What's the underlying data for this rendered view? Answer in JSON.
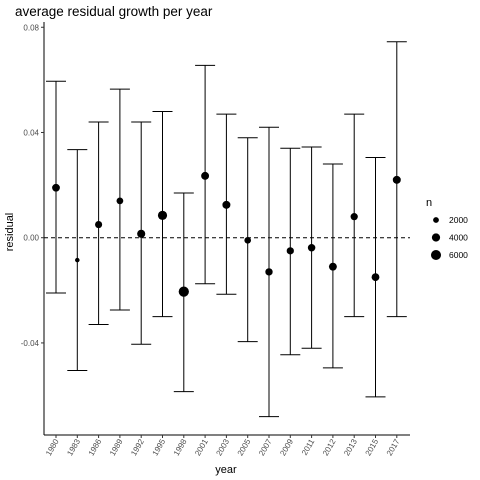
{
  "chart_data": {
    "type": "scatter",
    "title": "average residual growth per year",
    "xlabel": "year",
    "ylabel": "residual",
    "ylim": [
      -0.075,
      0.082
    ],
    "yticks": [
      -0.04,
      0.0,
      0.04,
      0.08
    ],
    "ytick_labels": [
      "-0.04",
      "0.00",
      "0.04",
      "0.08"
    ],
    "reference_line": {
      "y": 0.0,
      "style": "dashed"
    },
    "grid": false,
    "legend": {
      "title": "n",
      "position": "right",
      "entries": [
        {
          "label": "2000",
          "n": 2000
        },
        {
          "label": "4000",
          "n": 4000
        },
        {
          "label": "6000",
          "n": 6000
        }
      ]
    },
    "categories": [
      "1980",
      "1983",
      "1986",
      "1989",
      "1992",
      "1995",
      "1998",
      "2001",
      "2003",
      "2005",
      "2007",
      "2009",
      "2011",
      "2012",
      "2013",
      "2015",
      "2017"
    ],
    "values": [
      0.019,
      -0.0085,
      0.005,
      0.014,
      0.0015,
      0.0085,
      -0.0205,
      0.0235,
      0.0125,
      -0.001,
      -0.013,
      -0.005,
      -0.0038,
      -0.011,
      0.008,
      -0.015,
      0.022
    ],
    "error_low": [
      -0.021,
      -0.0505,
      -0.033,
      -0.0275,
      -0.0405,
      -0.03,
      -0.0585,
      -0.0175,
      -0.0215,
      -0.0395,
      -0.068,
      -0.0445,
      -0.042,
      -0.0495,
      -0.03,
      -0.0605,
      -0.03
    ],
    "error_high": [
      0.0595,
      0.0335,
      0.044,
      0.0565,
      0.044,
      0.048,
      0.017,
      0.0655,
      0.047,
      0.038,
      0.042,
      0.034,
      0.0345,
      0.028,
      0.047,
      0.0305,
      0.0745
    ],
    "n": [
      3600,
      1200,
      3000,
      2700,
      3900,
      5000,
      6200,
      3700,
      3800,
      2600,
      3200,
      3100,
      3300,
      3700,
      3100,
      3600,
      3800
    ]
  }
}
